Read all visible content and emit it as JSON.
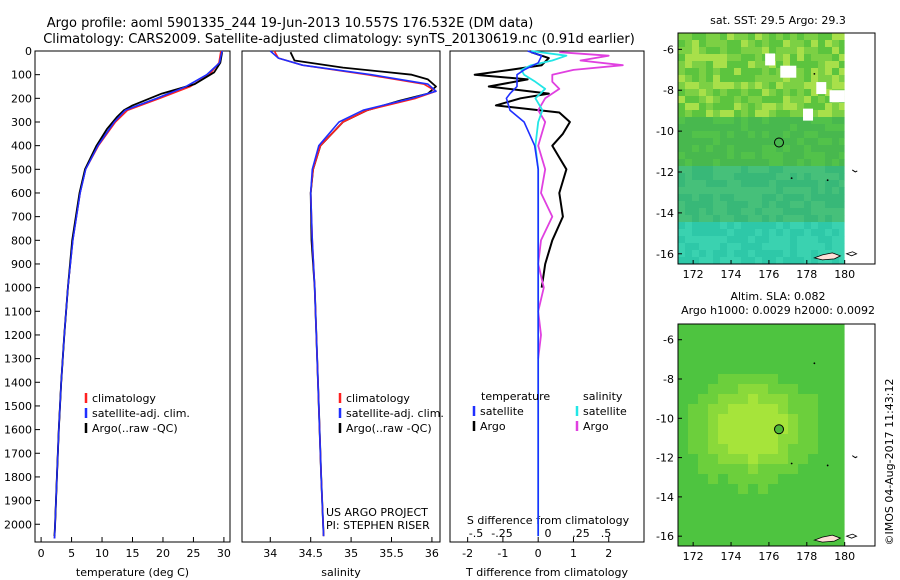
{
  "header": {
    "line1": "Argo profile: aoml 5901335_244 19-Jun-2013 10.557S 176.532E (DM data)",
    "line2": "Climatology: CARS2009. Satellite-adjusted climatology: synTS_20130619.nc (0.91d earlier)"
  },
  "credit": {
    "project": "US ARGO PROJECT",
    "pi": "PI: STEPHEN RISER",
    "stamp": "©IMOS 04-Aug-2017 11:43:12"
  },
  "colors": {
    "climatology": "#ff2020",
    "satellite": "#1f2fff",
    "argo": "#000000",
    "satellite_salinity": "#22e6e6",
    "argo_salinity": "#e040e0"
  },
  "chart_data": [
    {
      "type": "line",
      "panel": "temperature",
      "xlabel": "temperature (deg C)",
      "ylabel": "",
      "xlim": [
        -1,
        31
      ],
      "ylim": [
        2075,
        0
      ],
      "xticks": [
        0,
        5,
        10,
        15,
        20,
        25,
        30
      ],
      "yticks": [
        0,
        100,
        200,
        300,
        400,
        500,
        600,
        700,
        800,
        900,
        1000,
        1100,
        1200,
        1300,
        1400,
        1500,
        1600,
        1700,
        1800,
        1900,
        2000
      ],
      "legend": [
        "climatology",
        "satellite-adj. clim.",
        "Argo(..raw -QC)"
      ],
      "series": [
        {
          "name": "climatology",
          "depth": [
            0,
            50,
            100,
            150,
            200,
            250,
            300,
            400,
            500,
            600,
            800,
            1000,
            1200,
            1400,
            1600,
            1800,
            2000,
            2060
          ],
          "values": [
            29.5,
            29.2,
            27.6,
            24.5,
            19.5,
            14.2,
            12.2,
            9.4,
            7.3,
            6.4,
            5.2,
            4.4,
            3.8,
            3.3,
            2.9,
            2.6,
            2.3,
            2.2
          ]
        },
        {
          "name": "satellite-adj. clim.",
          "depth": [
            0,
            50,
            100,
            150,
            200,
            250,
            300,
            400,
            500,
            600,
            800,
            1000,
            1200,
            1400,
            1600,
            1800,
            2000,
            2060
          ],
          "values": [
            29.7,
            29.3,
            27.2,
            23.8,
            19.0,
            13.8,
            12.0,
            9.3,
            7.3,
            6.4,
            5.2,
            4.4,
            3.8,
            3.3,
            2.9,
            2.6,
            2.3,
            2.2
          ]
        },
        {
          "name": "Argo(..raw -QC)",
          "depth": [
            5,
            50,
            90,
            140,
            180,
            230,
            250,
            280,
            330,
            400,
            500,
            600,
            800,
            1000,
            1200,
            1400,
            1600,
            1800,
            2000,
            2050
          ],
          "values": [
            29.7,
            29.4,
            28.4,
            25.2,
            19.8,
            15.0,
            13.6,
            12.4,
            10.8,
            9.1,
            7.2,
            6.3,
            5.1,
            4.4,
            3.8,
            3.3,
            2.9,
            2.6,
            2.3,
            2.2
          ]
        }
      ]
    },
    {
      "type": "line",
      "panel": "salinity",
      "xlabel": "salinity",
      "ylabel": "",
      "xlim": [
        33.65,
        36.1
      ],
      "ylim": [
        2075,
        0
      ],
      "xticks": [
        34,
        34.5,
        35,
        35.5,
        36
      ],
      "legend": [
        "climatology",
        "satellite-adj. clim.",
        "Argo(..raw -QC)"
      ],
      "series": [
        {
          "name": "climatology",
          "depth": [
            0,
            30,
            60,
            100,
            140,
            170,
            200,
            250,
            300,
            400,
            500,
            600,
            800,
            1000,
            1400,
            1800,
            2050
          ],
          "values": [
            34.05,
            34.1,
            34.4,
            35.2,
            35.9,
            36.05,
            35.8,
            35.2,
            34.9,
            34.62,
            34.53,
            34.5,
            34.52,
            34.55,
            34.59,
            34.63,
            34.66
          ]
        },
        {
          "name": "satellite-adj. clim.",
          "depth": [
            0,
            30,
            60,
            100,
            140,
            170,
            200,
            250,
            300,
            400,
            500,
            600,
            800,
            1000,
            1400,
            1800,
            2050
          ],
          "values": [
            34.0,
            34.1,
            34.4,
            35.25,
            35.95,
            36.05,
            35.75,
            35.15,
            34.85,
            34.6,
            34.52,
            34.5,
            34.52,
            34.55,
            34.59,
            34.63,
            34.66
          ]
        },
        {
          "name": "Argo(..raw -QC)",
          "depth": [
            5,
            40,
            70,
            100,
            120,
            150,
            180,
            210,
            250,
            300,
            400,
            500,
            600,
            800,
            1000,
            1400,
            1800,
            2050
          ],
          "values": [
            34.25,
            34.3,
            34.9,
            35.75,
            35.95,
            36.05,
            35.95,
            35.6,
            35.2,
            34.9,
            34.62,
            34.53,
            34.5,
            34.51,
            34.55,
            34.59,
            34.63,
            34.66
          ]
        }
      ]
    },
    {
      "type": "line",
      "panel": "difference",
      "xlabel": "T difference from climatology",
      "xlabel_top": "S difference from climatology",
      "xlim": [
        -2.5,
        3
      ],
      "ylim": [
        2075,
        0
      ],
      "xticks": [
        -2,
        -1,
        0,
        1,
        2
      ],
      "xticks_S": [
        -0.5,
        -0.25,
        0,
        0.25,
        0.5
      ],
      "legend_title_T": "temperature",
      "legend_title_S": "salinity",
      "legend_T": [
        "satellite",
        "Argo"
      ],
      "legend_S": [
        "satellite",
        "Argo"
      ],
      "series": [
        {
          "name": "T satellite",
          "depth": [
            0,
            20,
            50,
            80,
            100,
            150,
            180,
            200,
            250,
            300,
            400,
            500,
            700,
            1000,
            1400,
            1800,
            2050
          ],
          "values": [
            -0.3,
            0.1,
            0.0,
            -0.4,
            -0.6,
            -0.6,
            -0.8,
            -0.9,
            -0.8,
            -0.4,
            -0.1,
            0.0,
            0.0,
            0.0,
            0.0,
            0.0,
            0.0
          ]
        },
        {
          "name": "T Argo",
          "depth": [
            5,
            30,
            60,
            80,
            100,
            120,
            150,
            180,
            200,
            230,
            260,
            300,
            350,
            400,
            450,
            500,
            600,
            700,
            800,
            900,
            1000
          ],
          "values": [
            -0.2,
            0.3,
            0.1,
            -0.8,
            -1.8,
            -0.3,
            -1.4,
            0.3,
            -0.5,
            -1.2,
            0.6,
            0.9,
            0.7,
            0.4,
            0.6,
            0.8,
            0.6,
            0.7,
            0.4,
            0.2,
            0.1
          ]
        },
        {
          "name": "S satellite",
          "depth": [
            0,
            20,
            40,
            60,
            80,
            100,
            130,
            160,
            200,
            250,
            300,
            400,
            500,
            700,
            1000,
            1400,
            1800,
            2050
          ],
          "values": [
            -0.05,
            0.2,
            0.1,
            -0.05,
            -0.12,
            -0.1,
            -0.02,
            0.05,
            -0.02,
            0.03,
            0.0,
            -0.02,
            0.0,
            0.0,
            0.0,
            0.0,
            0.0,
            0.0
          ]
        },
        {
          "name": "S Argo",
          "depth": [
            5,
            20,
            40,
            60,
            80,
            100,
            130,
            160,
            200,
            250,
            300,
            400,
            500,
            600,
            700,
            800,
            900,
            1000,
            1100,
            1200,
            1300
          ],
          "values": [
            0.15,
            0.5,
            0.3,
            0.6,
            0.25,
            0.1,
            0.1,
            0.15,
            0.05,
            0.0,
            0.05,
            0.0,
            0.05,
            0.02,
            0.1,
            0.02,
            0.0,
            0.04,
            0.0,
            0.02,
            0.0
          ]
        }
      ]
    },
    {
      "type": "heatmap",
      "panel": "sst-map",
      "title": "sat. SST: 29.5 Argo: 29.3",
      "xlim": [
        171.2,
        181.6
      ],
      "ylim": [
        -16.5,
        -5.2
      ],
      "xticks": [
        172,
        174,
        176,
        178,
        180
      ],
      "yticks": [
        -6,
        -8,
        -10,
        -12,
        -14,
        -16
      ],
      "marker": {
        "lon": 176.532,
        "lat": -10.557
      }
    },
    {
      "type": "heatmap",
      "panel": "sla-map",
      "title": "Altim. SLA: 0.082",
      "subtitle": "Argo h1000: 0.0029 h2000: 0.0092",
      "xlim": [
        171.2,
        181.6
      ],
      "ylim": [
        -16.5,
        -5.2
      ],
      "xticks": [
        172,
        174,
        176,
        178,
        180
      ],
      "yticks": [
        -6,
        -8,
        -10,
        -12,
        -14,
        -16
      ],
      "marker": {
        "lon": 176.532,
        "lat": -10.557
      }
    }
  ]
}
